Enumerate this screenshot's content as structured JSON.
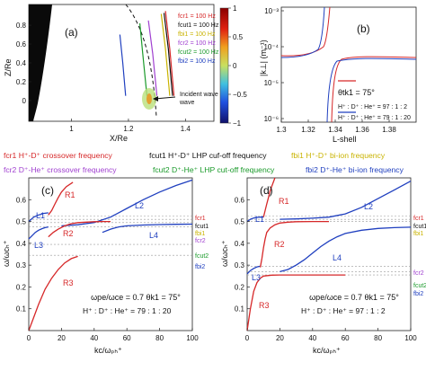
{
  "legend_row1": [
    {
      "label": "fcr1 H⁺-D⁺ crossover frequency",
      "color": "#d62728"
    },
    {
      "label": "fcut1 H⁺-D⁺ LHP cuf-off frequency",
      "color": "#111111"
    },
    {
      "label": "fbi1 H⁺-D⁺ bi-ion frequency",
      "color": "#c9b300"
    }
  ],
  "legend_row2": [
    {
      "label": "fcr2 D⁺-He⁺ crossover frequency",
      "color": "#a040d0"
    },
    {
      "label": "fcut2 D⁺-He⁺ LHP cut-off frequency",
      "color": "#1a9a2a"
    },
    {
      "label": "fbi2 D⁺-He⁺ bi-ion frequency",
      "color": "#1f3fbf"
    }
  ],
  "colors": {
    "red": "#d62728",
    "blue": "#1f3fbf",
    "black": "#111111",
    "yellow": "#c9b300",
    "purple": "#a040d0",
    "green": "#1a9a2a"
  },
  "chart_data": [
    {
      "panel_label": "(a)",
      "type": "line",
      "xlabel": "X/Re",
      "ylabel": "Z/Re",
      "xlim": [
        0.85,
        1.5
      ],
      "ylim": [
        -0.22,
        1.02
      ],
      "xticks": [
        "1",
        "1.2",
        "1.4"
      ],
      "yticks": [
        "0",
        "0.2",
        "0.4",
        "0.6",
        "0.8"
      ],
      "legend": [
        {
          "label": "fcr1 = 100 Hz",
          "color": "#d62728"
        },
        {
          "label": "fcut1 = 100 Hz",
          "color": "#111111"
        },
        {
          "label": "fbi1 = 100 Hz",
          "color": "#c9b300"
        },
        {
          "label": "fcr2 = 100 Hz",
          "color": "#a040d0"
        },
        {
          "label": "fcut2 = 100 Hz",
          "color": "#1a9a2a"
        },
        {
          "label": "fbi2 = 100 Hz",
          "color": "#1f3fbf"
        }
      ],
      "series": [
        {
          "name": "fcr1",
          "color": "#d62728",
          "x": [
            1.33,
            1.345,
            1.36
          ],
          "z": [
            0.95,
            0.55,
            0.05
          ]
        },
        {
          "name": "fcut1",
          "color": "#111111",
          "x": [
            1.325,
            1.34,
            1.355
          ],
          "z": [
            0.93,
            0.55,
            0.05
          ]
        },
        {
          "name": "fbi1",
          "color": "#c9b300",
          "x": [
            1.315,
            1.33,
            1.345
          ],
          "z": [
            0.92,
            0.55,
            0.05
          ]
        },
        {
          "name": "fcr2",
          "color": "#a040d0",
          "x": [
            1.27,
            1.285,
            1.3
          ],
          "z": [
            0.85,
            0.5,
            0.05
          ]
        },
        {
          "name": "fcut2",
          "color": "#1a9a2a",
          "x": [
            1.24,
            1.25,
            1.265
          ],
          "z": [
            0.82,
            0.5,
            0.05
          ]
        },
        {
          "name": "fbi2",
          "color": "#1f3fbf",
          "x": [
            1.17,
            1.18,
            1.19
          ],
          "z": [
            0.7,
            0.4,
            0.05
          ]
        }
      ],
      "annotation": "Incident wave",
      "colorbar": {
        "ticks": [
          "1",
          "0.5",
          "0",
          "−0.5",
          "−1"
        ],
        "range": [
          -1,
          1
        ]
      }
    },
    {
      "panel_label": "(b)",
      "type": "line",
      "xlabel": "L-shell",
      "ylabel": "|k⊥| (m⁻¹)",
      "xlim": [
        1.3,
        1.4
      ],
      "yscale": "log",
      "xticks": [
        "1.3",
        "1.32",
        "1.34",
        "1.36",
        "1.38"
      ],
      "yticks": [
        "10⁻³",
        "10⁻⁴",
        "10⁻⁵",
        "10⁻⁶"
      ],
      "theta": "θtk1 = 75°",
      "series": [
        {
          "name": "H⁺ : D⁺ : He⁺ = 97 : 1 : 2",
          "color": "#d62728"
        },
        {
          "name": "H⁺ : D⁺ : He⁺ = 79 : 1 : 20",
          "color": "#1f3fbf"
        }
      ]
    },
    {
      "panel_label": "(c)",
      "type": "line",
      "xlabel": "kc/ωₚₕ⁺",
      "ylabel": "ω/ωᴄₕ⁺",
      "xlim": [
        0,
        100
      ],
      "ylim": [
        0,
        0.7
      ],
      "xticks": [
        0,
        20,
        40,
        60,
        80,
        100
      ],
      "yticks": [
        0.1,
        0.2,
        0.3,
        0.4,
        0.5,
        0.6
      ],
      "params": "ωpe/ωce = 0.7   θk1 = 75°",
      "composition": "H⁺ : D⁺ : He⁺ = 79 : 1 : 20",
      "levels": [
        {
          "name": "fcr1",
          "value": 0.525,
          "color": "#d62728"
        },
        {
          "name": "fcut1",
          "value": 0.51,
          "color": "#111111"
        },
        {
          "name": "fbi1",
          "value": 0.495,
          "color": "#c9b300"
        },
        {
          "name": "fcr2",
          "value": 0.475,
          "color": "#a040d0"
        },
        {
          "name": "fcut2",
          "value": 0.395,
          "color": "#1a9a2a"
        },
        {
          "name": "fbi2",
          "value": 0.345,
          "color": "#1f3fbf"
        }
      ],
      "curves": [
        {
          "name": "L1",
          "color": "#1f3fbf",
          "x": [
            0,
            3,
            6,
            9,
            12
          ],
          "y": [
            0.5,
            0.52,
            0.53,
            0.537,
            0.54
          ]
        },
        {
          "name": "R1",
          "color": "#d62728",
          "x": [
            12,
            14,
            16,
            18,
            20,
            23,
            27
          ],
          "y": [
            0.53,
            0.55,
            0.58,
            0.61,
            0.635,
            0.66,
            0.68
          ]
        },
        {
          "name": "L2",
          "color": "#1f3fbf",
          "x": [
            20,
            30,
            40,
            50,
            60,
            70,
            80,
            90,
            100
          ],
          "y": [
            0.48,
            0.485,
            0.495,
            0.52,
            0.56,
            0.6,
            0.635,
            0.665,
            0.69
          ]
        },
        {
          "name": "L3",
          "color": "#1f3fbf",
          "x": [
            0,
            2,
            4,
            6,
            8,
            10,
            12
          ],
          "y": [
            0.42,
            0.435,
            0.45,
            0.46,
            0.467,
            0.472,
            0.475
          ]
        },
        {
          "name": "R2",
          "color": "#d62728",
          "x": [
            12,
            15,
            18,
            22,
            26,
            30,
            35,
            40,
            45,
            50
          ],
          "y": [
            0.43,
            0.45,
            0.465,
            0.48,
            0.49,
            0.495,
            0.497,
            0.499,
            0.5,
            0.5
          ]
        },
        {
          "name": "L4",
          "color": "#1f3fbf",
          "x": [
            45,
            50,
            55,
            60,
            70,
            80,
            90,
            100
          ],
          "y": [
            0.45,
            0.465,
            0.475,
            0.48,
            0.484,
            0.486,
            0.487,
            0.488
          ]
        },
        {
          "name": "R3",
          "color": "#d62728",
          "x": [
            0,
            3,
            6,
            10,
            14,
            18,
            22,
            26,
            30
          ],
          "y": [
            0.0,
            0.06,
            0.12,
            0.19,
            0.24,
            0.28,
            0.31,
            0.33,
            0.34
          ]
        }
      ],
      "curve_labels": [
        "L1",
        "R1",
        "L2",
        "L3",
        "R2",
        "L4",
        "R3"
      ]
    },
    {
      "panel_label": "(d)",
      "type": "line",
      "xlabel": "kc/ωₚₕ⁺",
      "ylabel": "ω/ωᴄₕ⁺",
      "xlim": [
        0,
        100
      ],
      "ylim": [
        0,
        0.7
      ],
      "xticks": [
        0,
        20,
        40,
        60,
        80,
        100
      ],
      "yticks": [
        0.1,
        0.2,
        0.3,
        0.4,
        0.5,
        0.6
      ],
      "params": "ωpe/ωce = 0.7   θk1 = 75°",
      "composition": "H⁺ : D⁺ : He⁺ = 97 : 1 : 2",
      "levels": [
        {
          "name": "fcr1",
          "value": 0.525,
          "color": "#d62728"
        },
        {
          "name": "fcut1",
          "value": 0.51,
          "color": "#111111"
        },
        {
          "name": "fbi1",
          "value": 0.5,
          "color": "#c9b300"
        },
        {
          "name": "fcr2",
          "value": 0.295,
          "color": "#a040d0"
        },
        {
          "name": "fcut2",
          "value": 0.27,
          "color": "#1a9a2a"
        },
        {
          "name": "fbi2",
          "value": 0.255,
          "color": "#1f3fbf"
        }
      ],
      "curves": [
        {
          "name": "L1",
          "color": "#1f3fbf",
          "x": [
            0,
            2,
            4,
            6,
            8,
            10
          ],
          "y": [
            0.5,
            0.51,
            0.516,
            0.519,
            0.52,
            0.52
          ]
        },
        {
          "name": "R1",
          "color": "#d62728",
          "x": [
            10,
            11,
            12,
            13,
            14,
            15,
            16,
            17
          ],
          "y": [
            0.52,
            0.55,
            0.58,
            0.61,
            0.64,
            0.66,
            0.68,
            0.7
          ]
        },
        {
          "name": "L2",
          "color": "#1f3fbf",
          "x": [
            20,
            30,
            40,
            50,
            60,
            70,
            80,
            90,
            100
          ],
          "y": [
            0.51,
            0.512,
            0.515,
            0.52,
            0.535,
            0.565,
            0.605,
            0.645,
            0.685
          ]
        },
        {
          "name": "L3",
          "color": "#1f3fbf",
          "x": [
            0,
            2,
            4,
            6,
            8
          ],
          "y": [
            0.26,
            0.275,
            0.285,
            0.292,
            0.295
          ]
        },
        {
          "name": "R2",
          "color": "#d62728",
          "x": [
            8,
            9,
            10,
            11,
            12,
            14,
            17,
            20,
            25,
            30,
            40,
            50
          ],
          "y": [
            0.29,
            0.33,
            0.38,
            0.42,
            0.45,
            0.47,
            0.485,
            0.493,
            0.497,
            0.499,
            0.5,
            0.5
          ]
        },
        {
          "name": "L4",
          "color": "#1f3fbf",
          "x": [
            20,
            25,
            30,
            35,
            40,
            45,
            50,
            55,
            60,
            70,
            80,
            90,
            100
          ],
          "y": [
            0.27,
            0.28,
            0.3,
            0.325,
            0.355,
            0.385,
            0.41,
            0.43,
            0.445,
            0.46,
            0.468,
            0.472,
            0.474
          ]
        },
        {
          "name": "R3",
          "color": "#d62728",
          "x": [
            0,
            2,
            4,
            6,
            8,
            10,
            15,
            20,
            30,
            40,
            50,
            60
          ],
          "y": [
            0.0,
            0.1,
            0.18,
            0.22,
            0.24,
            0.25,
            0.254,
            0.255,
            0.255,
            0.255,
            0.255,
            0.255
          ]
        }
      ],
      "curve_labels": [
        "L1",
        "R1",
        "L2",
        "L3",
        "R2",
        "L4",
        "R3"
      ]
    }
  ]
}
